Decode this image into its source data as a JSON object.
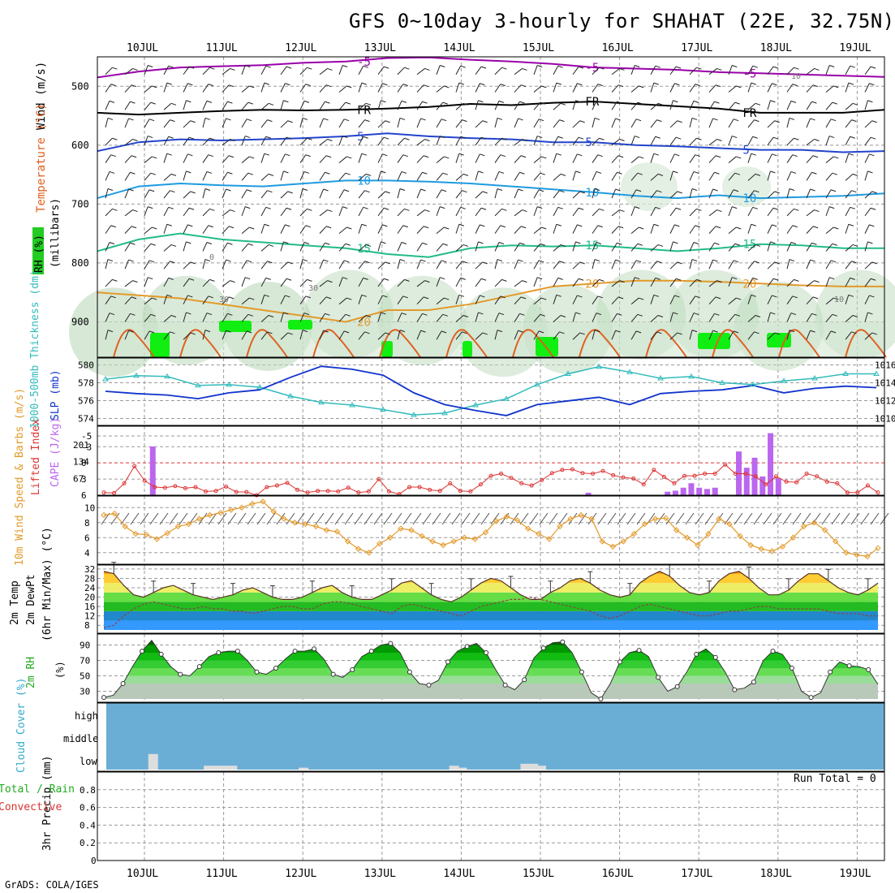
{
  "title": "GFS 0~10day 3-hourly for SHAHAT (22E, 32.75N)",
  "footer": "GrADS: COLA/IGES",
  "run_total": "Run Total = 0",
  "colors": {
    "rh_green": "#22cc22",
    "temp_purple": "#9900aa",
    "temp_blue": "#2244cc",
    "temp_cyan": "#1e9be0",
    "temp_teal": "#22bb88",
    "temp_orange": "#e39a2a",
    "cape_bar": "#bb66ee",
    "lifted_line": "#dd3333",
    "thickness_line": "#33bbbb",
    "slp_line": "#1133cc",
    "wind_speed": "#e39a2a",
    "cloud_bg": "#6aaed6"
  },
  "chart_data": [
    {
      "id": "upper_air",
      "type": "contour",
      "x_labels": [
        "10JUL",
        "11JUL",
        "12JUL",
        "13JUL",
        "14JUL",
        "15JUL",
        "16JUL",
        "17JUL",
        "18JUL",
        "19JUL"
      ],
      "ylabel_parts": [
        "Wind (m/s)",
        "Temperature (°C)",
        "RH (%)",
        "(millibars)"
      ],
      "y_ticks": [
        500,
        600,
        700,
        800,
        900
      ],
      "ylim": [
        960,
        450
      ],
      "isotherms": [
        {
          "label": "-5",
          "color": "#9900aa",
          "values": [
            485,
            475,
            468,
            466,
            464,
            460,
            458,
            452,
            451,
            455,
            458,
            462,
            468,
            470,
            472,
            476,
            478,
            480,
            482,
            484
          ]
        },
        {
          "label": "FR",
          "color": "#000000",
          "values": [
            545,
            548,
            545,
            542,
            540,
            541,
            540,
            538,
            535,
            530,
            532,
            528,
            526,
            530,
            534,
            538,
            545,
            545,
            545,
            540
          ]
        },
        {
          "label": "5",
          "color": "#2244cc",
          "values": [
            610,
            595,
            590,
            592,
            590,
            588,
            585,
            580,
            585,
            588,
            590,
            595,
            595,
            600,
            602,
            605,
            608,
            608,
            612,
            610
          ]
        },
        {
          "label": "10",
          "color": "#1e9be0",
          "values": [
            690,
            670,
            665,
            668,
            670,
            665,
            660,
            660,
            662,
            665,
            670,
            675,
            680,
            686,
            690,
            685,
            690,
            688,
            686,
            682
          ]
        },
        {
          "label": "15",
          "color": "#22bb88",
          "values": [
            780,
            760,
            750,
            760,
            765,
            770,
            775,
            785,
            790,
            775,
            770,
            772,
            770,
            775,
            780,
            775,
            768,
            770,
            775,
            775
          ]
        },
        {
          "label": "20",
          "color": "#e39a2a",
          "values": [
            850,
            855,
            860,
            870,
            880,
            890,
            900,
            880,
            880,
            870,
            855,
            840,
            835,
            830,
            830,
            832,
            835,
            838,
            840,
            840
          ]
        }
      ],
      "rh_contour_labels": [
        "0",
        "30",
        "30",
        "10",
        "10"
      ]
    },
    {
      "id": "thickness_slp",
      "type": "line",
      "ylabel": "1000-500mb Thickness (dm)",
      "ylabel2": "SLP (mb)",
      "y_ticks_left": [
        "574",
        "576",
        "578",
        "580"
      ],
      "y_ticks_right": [
        "1010",
        "1012",
        "1014",
        "1016"
      ],
      "series": [
        {
          "name": "Thickness",
          "unit": "dm",
          "values": [
            578.4,
            578.8,
            578.7,
            577.7,
            577.8,
            577.5,
            576.5,
            575.8,
            575.5,
            575.0,
            574.4,
            574.6,
            575.5,
            576.2,
            577.8,
            579.0,
            579.8,
            579.2,
            578.5,
            578.7,
            578.0,
            577.8,
            578.2,
            578.5,
            579.0,
            579.0
          ]
        },
        {
          "name": "SLP",
          "unit": "mb",
          "values": [
            1012.8,
            1012.5,
            1012.3,
            1011.8,
            1012.6,
            1013.0,
            1014.7,
            1016.2,
            1015.8,
            1015.0,
            1012.6,
            1011.0,
            1010.2,
            1009.5,
            1011.0,
            1011.5,
            1012.0,
            1011.0,
            1012.5,
            1012.8,
            1013.0,
            1013.6,
            1012.6,
            1013.2,
            1013.5,
            1013.3
          ]
        }
      ]
    },
    {
      "id": "lifted_cape",
      "type": "bar",
      "ylabel": "Lifted Index",
      "ylabel2": "CAPE (J/kg)",
      "y_ticks_left": [
        "-5",
        "-3",
        "0",
        "3",
        "6"
      ],
      "y_ticks_right": [
        "201",
        "134",
        "67"
      ],
      "cape_values": [
        0,
        0,
        0,
        0,
        0,
        0,
        0,
        0,
        0,
        0,
        0,
        0,
        0,
        0,
        0,
        0,
        0,
        0,
        0,
        0,
        0,
        0,
        0,
        0,
        0,
        0,
        0,
        0,
        0,
        0,
        0,
        0,
        0,
        0,
        0,
        0,
        0,
        0,
        0,
        0,
        0,
        0,
        0,
        0,
        0,
        0,
        0,
        0,
        0,
        0,
        0,
        0,
        0,
        0,
        0,
        0,
        0,
        0,
        0,
        0,
        0,
        0,
        0,
        0,
        0,
        0,
        0,
        0,
        0,
        0,
        0,
        0,
        0,
        0,
        0,
        0,
        0
      ],
      "cape_highlights": [
        {
          "day": 0.1,
          "value": 195
        },
        {
          "day": 5.6,
          "value": 10
        },
        {
          "day": 6.6,
          "value": 14
        },
        {
          "day": 6.7,
          "value": 18
        },
        {
          "day": 6.8,
          "value": 30
        },
        {
          "day": 6.9,
          "value": 48
        },
        {
          "day": 7.0,
          "value": 30
        },
        {
          "day": 7.1,
          "value": 25
        },
        {
          "day": 7.2,
          "value": 30
        },
        {
          "day": 7.5,
          "value": 175
        },
        {
          "day": 7.6,
          "value": 110
        },
        {
          "day": 7.7,
          "value": 150
        },
        {
          "day": 7.8,
          "value": 75
        },
        {
          "day": 7.9,
          "value": 248
        },
        {
          "day": 8.0,
          "value": 68
        }
      ],
      "lifted_values": [
        5.5,
        5.6,
        3.8,
        0.6,
        3.3,
        4.5,
        4.6,
        4.3,
        4.7,
        4.5,
        5.3,
        5.2,
        4.4,
        5.4,
        5.4,
        6.0,
        4.5,
        4.2,
        3.7,
        5.0,
        5.5,
        5.2,
        5.2,
        5.3,
        4.6,
        5.5,
        5.3,
        3.0,
        5.3,
        5.8,
        4.5,
        4.5,
        5.0,
        5.2,
        3.8,
        5.2,
        5.3,
        4.0,
        2.4,
        2.0,
        2.8,
        3.8,
        4.2,
        3.2,
        1.9,
        1.3,
        1.2,
        1.9,
        2.0,
        1.5,
        2.3,
        2.7,
        2.9,
        4.0,
        1.3,
        2.6,
        3.8,
        2.4,
        2.4,
        2.0,
        2.0,
        0.3,
        2.0,
        2.0,
        2.5,
        4.0,
        2.5,
        3.5,
        3.6,
        2.0,
        2.5,
        3.5,
        3.8,
        5.5,
        5.5,
        4.2,
        5.5
      ]
    },
    {
      "id": "wind10m",
      "type": "line",
      "ylabel": "10m Wind Speed & Barbs (m/s)",
      "y_ticks": [
        "4",
        "6",
        "8",
        "10"
      ],
      "values": [
        9.0,
        9.2,
        7.5,
        6.5,
        6.4,
        5.8,
        6.6,
        7.5,
        7.8,
        8.5,
        9.0,
        9.3,
        9.7,
        10.0,
        10.5,
        10.8,
        9.5,
        8.5,
        8.0,
        7.8,
        7.5,
        7.0,
        6.8,
        5.5,
        4.5,
        4.0,
        5.2,
        6.0,
        7.2,
        7.0,
        6.2,
        5.5,
        5.0,
        5.5,
        6.0,
        5.8,
        6.7,
        8.2,
        8.8,
        8.3,
        7.2,
        6.5,
        5.8,
        7.5,
        8.5,
        9.0,
        8.5,
        5.5,
        4.8,
        5.5,
        6.5,
        7.8,
        8.5,
        8.6,
        7.0,
        6.0,
        5.0,
        6.5,
        8.5,
        7.8,
        6.2,
        5.0,
        4.5,
        4.2,
        4.8,
        6.0,
        7.5,
        8.0,
        7.0,
        5.5,
        4.0,
        3.7,
        3.5,
        4.6
      ]
    },
    {
      "id": "temp2m",
      "type": "area",
      "ylabel": "2m Temp",
      "ylabel2": "2m DewPt",
      "ylabel3": "(6hr Min/Max) (°C)",
      "y_ticks": [
        "8",
        "12",
        "16",
        "20",
        "24",
        "28",
        "32"
      ],
      "temp_values": [
        31,
        30,
        25,
        21,
        20,
        22,
        24,
        25,
        23,
        21,
        20,
        19,
        20,
        21,
        23,
        24,
        22,
        20,
        19,
        19,
        20,
        22,
        24,
        25,
        22,
        20,
        19,
        19,
        21,
        23,
        26,
        27,
        24,
        21,
        19,
        18,
        20,
        23,
        26,
        28,
        27,
        24,
        21,
        19,
        19,
        22,
        24,
        27,
        28,
        26,
        23,
        21,
        20,
        21,
        26,
        29,
        31,
        29,
        25,
        22,
        21,
        22,
        27,
        30,
        31,
        28,
        24,
        21,
        21,
        23,
        27,
        30,
        30,
        27,
        24,
        22,
        21,
        23,
        26
      ],
      "dew_values": [
        7,
        8,
        12,
        15,
        17,
        18,
        17,
        16,
        15,
        15,
        16,
        15,
        15,
        14,
        14,
        13,
        14,
        15,
        16,
        16,
        15,
        15,
        17,
        18,
        18,
        17,
        16,
        15,
        14,
        13,
        16,
        17,
        16,
        15,
        14,
        13,
        12,
        14,
        16,
        17,
        18,
        19,
        19,
        20,
        19,
        18,
        17,
        16,
        15,
        14,
        12,
        11,
        12,
        14,
        16,
        17,
        16,
        15,
        14,
        13,
        12,
        12,
        13,
        14,
        14,
        15,
        16,
        16,
        15,
        15,
        15,
        15,
        15,
        14,
        13,
        13,
        13,
        12,
        12
      ]
    },
    {
      "id": "rh2m",
      "type": "area",
      "ylabel": "2m RH",
      "ylabel2": "(%)",
      "y_ticks": [
        "30",
        "50",
        "70",
        "90"
      ],
      "values": [
        22,
        25,
        40,
        62,
        82,
        96,
        78,
        62,
        52,
        50,
        62,
        75,
        80,
        82,
        82,
        70,
        55,
        52,
        60,
        72,
        82,
        82,
        85,
        72,
        52,
        48,
        58,
        75,
        82,
        90,
        92,
        80,
        55,
        40,
        38,
        44,
        68,
        82,
        88,
        92,
        80,
        58,
        38,
        32,
        45,
        73,
        86,
        93,
        94,
        80,
        55,
        28,
        20,
        40,
        68,
        80,
        83,
        75,
        48,
        30,
        36,
        55,
        78,
        85,
        74,
        55,
        32,
        34,
        42,
        70,
        82,
        78,
        60,
        30,
        22,
        28,
        55,
        68,
        63,
        62,
        58,
        39
      ]
    },
    {
      "id": "cloud",
      "type": "bar",
      "ylabel": "Cloud Cover (%)",
      "levels": [
        "high",
        "middle",
        "low"
      ],
      "low_values": [
        {
          "day": 0.1,
          "value": 24
        },
        {
          "day": 0.8,
          "value": 6
        },
        {
          "day": 0.9,
          "value": 6
        },
        {
          "day": 1.0,
          "value": 6
        },
        {
          "day": 1.1,
          "value": 6
        },
        {
          "day": 2.0,
          "value": 3
        },
        {
          "day": 3.9,
          "value": 6
        },
        {
          "day": 4.0,
          "value": 3
        },
        {
          "day": 4.8,
          "value": 9
        },
        {
          "day": 4.9,
          "value": 9
        },
        {
          "day": 5.0,
          "value": 6
        }
      ]
    },
    {
      "id": "precip",
      "type": "bar",
      "ylabel": "3hr Precip (mm)",
      "ylabel_left": [
        "Total / Rain",
        "Convective"
      ],
      "y_ticks": [
        "0",
        "0.2",
        "0.4",
        "0.6",
        "0.8"
      ],
      "values": []
    }
  ]
}
